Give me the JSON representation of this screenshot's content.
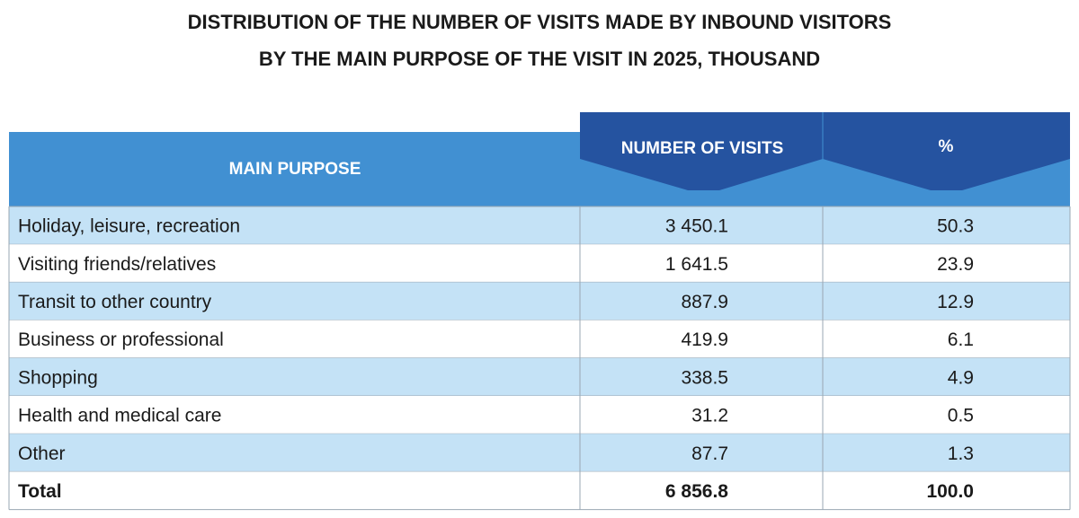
{
  "title": [
    "DISTRIBUTION OF THE NUMBER OF VISITS MADE BY INBOUND VISITORS",
    "BY THE MAIN PURPOSE OF THE VISIT IN 2025, THOUSAND"
  ],
  "table": {
    "columns": [
      "MAIN PURPOSE",
      "NUMBER OF VISITS",
      "%"
    ],
    "rows": [
      [
        "Holiday, leisure, recreation",
        "3 450.1",
        "50.3"
      ],
      [
        "Visiting friends/relatives",
        "1 641.5",
        "23.9"
      ],
      [
        "Transit to other country",
        "887.9",
        "12.9"
      ],
      [
        "Business or professional",
        "419.9",
        "6.1"
      ],
      [
        "Shopping",
        "338.5",
        "4.9"
      ],
      [
        "Health and medical care",
        "31.2",
        "0.5"
      ],
      [
        "Other",
        "87.7",
        "1.3"
      ]
    ],
    "total": [
      "Total",
      "6 856.8",
      "100.0"
    ]
  }
}
